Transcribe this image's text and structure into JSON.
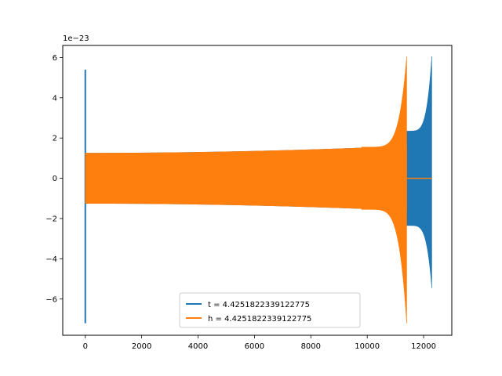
{
  "chart_data": {
    "type": "line",
    "title": "",
    "xlabel": "",
    "ylabel": "",
    "y_offset_text": "1e−23",
    "xlim": [
      -800,
      13000
    ],
    "ylim": [
      -7.8,
      6.6
    ],
    "xticks": [
      0,
      2000,
      4000,
      6000,
      8000,
      10000,
      12000
    ],
    "xtick_labels": [
      "0",
      "2000",
      "4000",
      "6000",
      "8000",
      "10000",
      "12000"
    ],
    "yticks": [
      -6,
      -4,
      -2,
      0,
      2,
      4,
      6
    ],
    "ytick_labels": [
      "−6",
      "−4",
      "−2",
      "0",
      "2",
      "4",
      "6"
    ],
    "grid": false,
    "legend_position": "lower center",
    "series": [
      {
        "name": "t = 4.4251822339122775",
        "color": "#1f77b4",
        "envelope": {
          "x_start": 0,
          "x_end": 12290,
          "early_spike": {
            "x": 0,
            "y_max": 5.4,
            "y_min": -7.2
          },
          "plateau": {
            "x_start": 0,
            "x_end": 11400,
            "amp_start": 1.25,
            "amp_end": 1.6
          },
          "tail": {
            "x_start": 11400,
            "x_end": 12290,
            "amp_start": 2.35,
            "amp_peak_upper": 6.05,
            "amp_peak_lower": -5.45
          }
        }
      },
      {
        "name": "h = 4.4251822339122775",
        "color": "#ff7f0e",
        "envelope": {
          "x_start": 0,
          "x_end": 11400,
          "early_spike": {
            "x": 0,
            "y_max": 5.0,
            "y_min": -6.8
          },
          "plateau": {
            "x_start": 0,
            "x_end": 11400,
            "amp_start": 1.25,
            "amp_end": 1.6
          },
          "chirp_peak": {
            "x": 11400,
            "y_max": 6.05,
            "y_min": -7.2
          },
          "zero_tail": {
            "x_start": 11400,
            "x_end": 12290,
            "y": 0
          }
        }
      }
    ]
  }
}
